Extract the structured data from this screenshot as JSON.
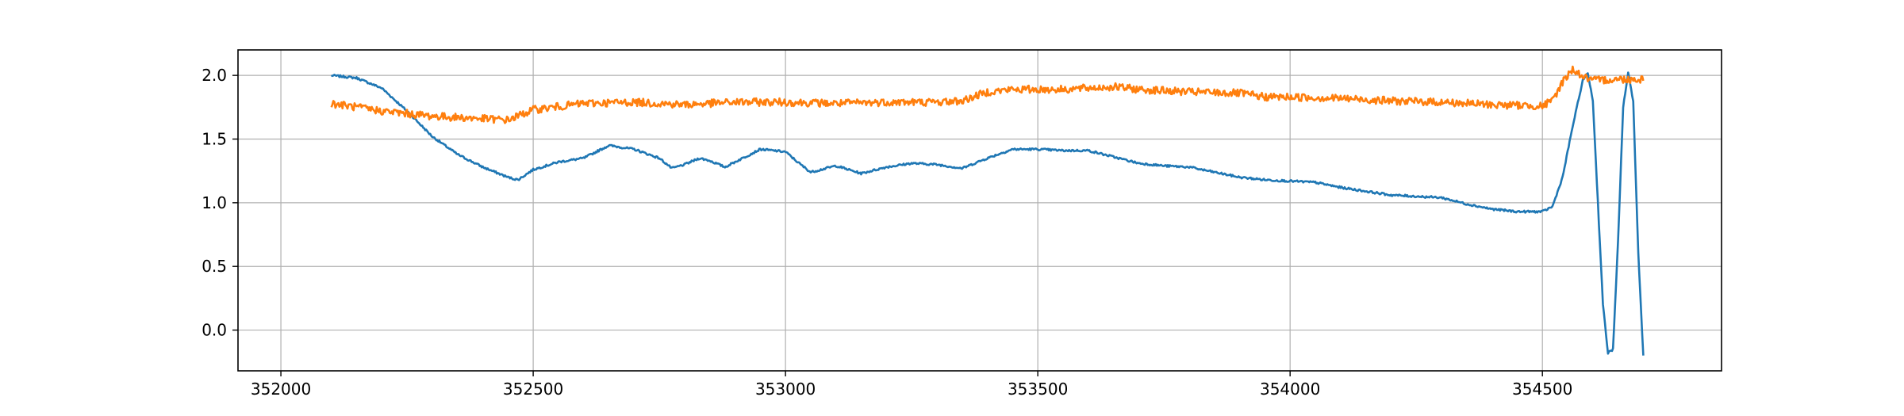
{
  "chart_data": {
    "type": "line",
    "title": "",
    "xlabel": "",
    "ylabel": "",
    "xlim": [
      351915,
      354855
    ],
    "ylim": [
      -0.32,
      2.2
    ],
    "xticks": [
      352000,
      352500,
      353000,
      353500,
      354000,
      354500
    ],
    "yticks": [
      0.0,
      0.5,
      1.0,
      1.5,
      2.0
    ],
    "grid": true,
    "series": [
      {
        "color": "#1f77b4",
        "x": [
          352100,
          352150,
          352200,
          352250,
          352300,
          352350,
          352400,
          352450,
          352470,
          352500,
          352550,
          352600,
          352650,
          352700,
          352750,
          352775,
          352800,
          352830,
          352850,
          352880,
          352900,
          352950,
          353000,
          353030,
          353050,
          353100,
          353150,
          353200,
          353250,
          353300,
          353350,
          353400,
          353450,
          353500,
          353550,
          353600,
          353650,
          353700,
          353750,
          353800,
          353850,
          353900,
          353950,
          354000,
          354050,
          354100,
          354150,
          354200,
          354250,
          354300,
          354350,
          354400,
          354450,
          354500,
          354520,
          354540,
          354560,
          354580,
          354590,
          354600,
          354610,
          354620,
          354630,
          354640,
          354650,
          354660,
          354670,
          354680,
          354690,
          354700
        ],
        "values": [
          2.0,
          1.98,
          1.9,
          1.72,
          1.52,
          1.38,
          1.28,
          1.2,
          1.18,
          1.26,
          1.32,
          1.35,
          1.45,
          1.42,
          1.35,
          1.27,
          1.3,
          1.35,
          1.33,
          1.28,
          1.32,
          1.42,
          1.4,
          1.3,
          1.24,
          1.29,
          1.23,
          1.28,
          1.31,
          1.3,
          1.27,
          1.35,
          1.42,
          1.42,
          1.41,
          1.41,
          1.36,
          1.31,
          1.29,
          1.28,
          1.24,
          1.2,
          1.18,
          1.17,
          1.16,
          1.12,
          1.09,
          1.06,
          1.05,
          1.04,
          0.99,
          0.95,
          0.93,
          0.93,
          0.97,
          1.2,
          1.6,
          1.96,
          2.02,
          1.8,
          1.0,
          0.2,
          -0.18,
          -0.15,
          0.7,
          1.75,
          2.02,
          1.8,
          0.6,
          -0.2
        ]
      },
      {
        "color": "#ff7f0e",
        "x": [
          352100,
          352200,
          352300,
          352400,
          352450,
          352500,
          352600,
          352700,
          352800,
          352900,
          353000,
          353100,
          353200,
          353300,
          353350,
          353400,
          353450,
          353500,
          353550,
          353600,
          353650,
          353700,
          353800,
          353900,
          353950,
          354000,
          354100,
          354200,
          354300,
          354400,
          354500,
          354520,
          354540,
          354560,
          354580,
          354600,
          354650,
          354700
        ],
        "values": [
          1.78,
          1.72,
          1.68,
          1.66,
          1.65,
          1.73,
          1.78,
          1.79,
          1.77,
          1.79,
          1.79,
          1.78,
          1.79,
          1.79,
          1.8,
          1.87,
          1.89,
          1.89,
          1.89,
          1.9,
          1.91,
          1.89,
          1.87,
          1.86,
          1.83,
          1.83,
          1.82,
          1.8,
          1.79,
          1.77,
          1.76,
          1.8,
          1.95,
          2.05,
          1.99,
          1.96,
          1.97,
          1.97
        ]
      }
    ]
  }
}
